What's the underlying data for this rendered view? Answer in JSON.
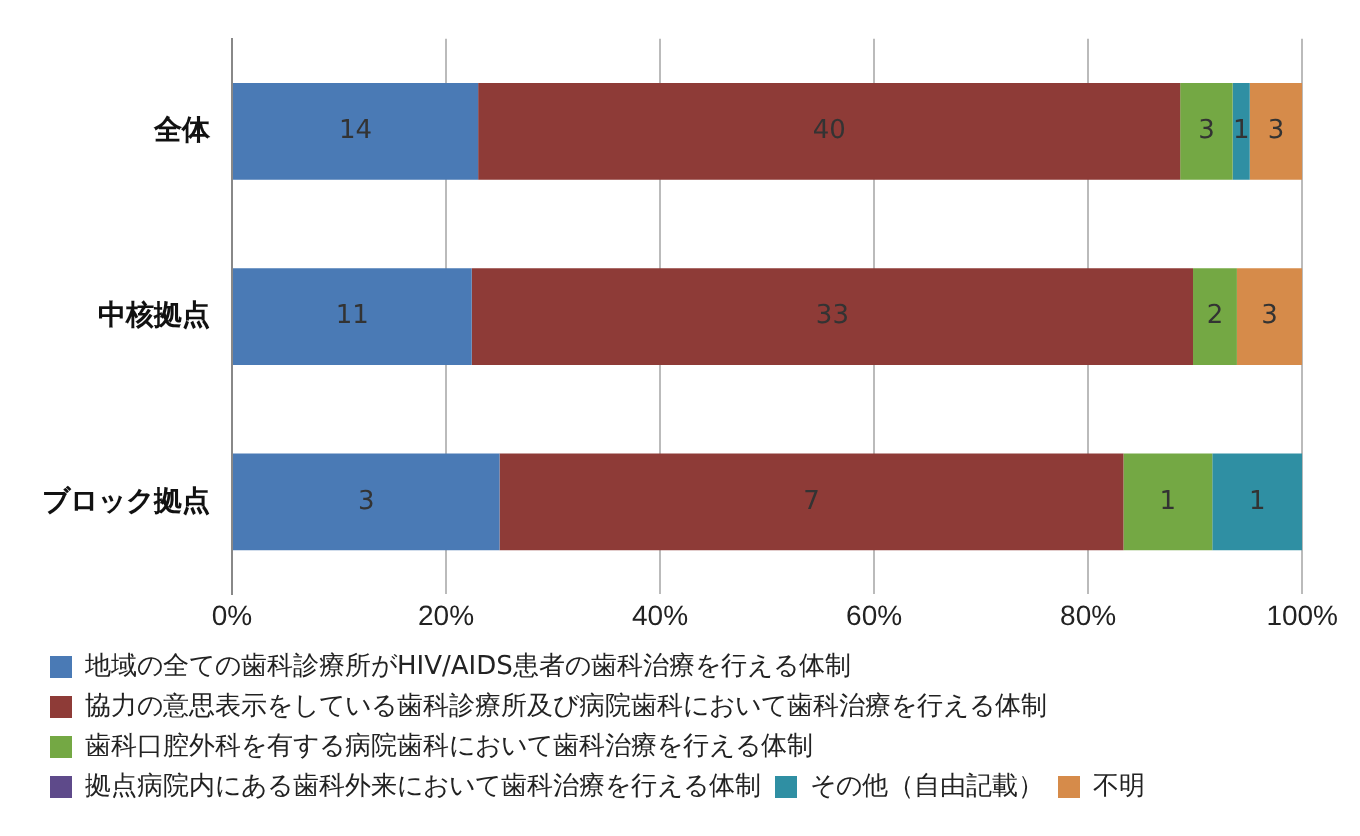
{
  "chart_data": {
    "type": "bar",
    "orientation": "horizontal",
    "stacked": true,
    "categories": [
      "全体",
      "中核拠点",
      "ブロック拠点"
    ],
    "series": [
      {
        "name": "地域の全ての歯科診療所がHIV/AIDS患者の歯科治療を行える体制",
        "color": "#4a7ab5",
        "values": [
          23.0,
          22.4,
          25.0
        ]
      },
      {
        "name": "協力の意思表示をしている歯科診療所及び病院歯科において歯科治療を行える体制",
        "color": "#8e3b37",
        "values": [
          65.6,
          67.4,
          58.3
        ]
      },
      {
        "name": "歯科口腔外科を有する病院歯科において歯科治療を行える体制",
        "color": "#74a844",
        "values": [
          4.9,
          4.1,
          8.3
        ]
      },
      {
        "name": "拠点病院内にある歯科外来において歯科治療を行える体制",
        "color": "#5e4a8a",
        "values": [
          0,
          0,
          0
        ]
      },
      {
        "name": "その他（自由記載）",
        "color": "#2f8fa3",
        "values": [
          1.6,
          0,
          8.4
        ]
      },
      {
        "name": "不明",
        "color": "#d68b4a",
        "values": [
          4.9,
          6.1,
          0
        ]
      }
    ],
    "annotations": [
      "14",
      "40",
      "3",
      "1",
      "3",
      "11",
      "33",
      "2",
      "3",
      "3",
      "7",
      "1",
      "1"
    ],
    "xlim": [
      0,
      100
    ],
    "xticks": [
      {
        "value": 0,
        "label": "0%"
      },
      {
        "value": 20,
        "label": "20%"
      },
      {
        "value": 40,
        "label": "40%"
      },
      {
        "value": 60,
        "label": "60%"
      },
      {
        "value": 80,
        "label": "80%"
      },
      {
        "value": 100,
        "label": "100%"
      }
    ],
    "grid": "x",
    "legend": "bottom"
  }
}
